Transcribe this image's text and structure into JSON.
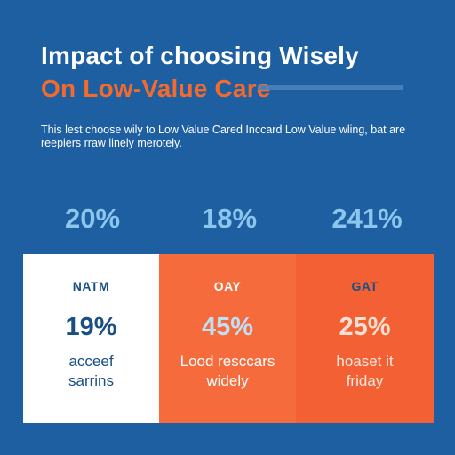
{
  "header": {
    "title_line1": "Impact of choosing Wisely",
    "title_line2": "On Low-Value Care",
    "subtitle": "This lest choose wily to Low Value Cared Inccard Low Value wling, bat are reepiers rraw linely merotely."
  },
  "stats_top": [
    "20%",
    "18%",
    "241%"
  ],
  "cards": [
    {
      "label": "NATM",
      "value": "19%",
      "desc_line1": "acceef",
      "desc_line2": "sarrins"
    },
    {
      "label": "OAY",
      "value": "45%",
      "desc_line1": "Lood resccars",
      "desc_line2": "widely"
    },
    {
      "label": "GAT",
      "value": "25%",
      "desc_line1": "hoaset it",
      "desc_line2": "friday"
    }
  ],
  "colors": {
    "background": "#1d5fa0",
    "accent_orange": "#f26a2e",
    "card_white": "#ffffff",
    "card_orange_1": "#f56b3c",
    "card_orange_2": "#f26033",
    "stat_blue": "#8cc6ee"
  }
}
